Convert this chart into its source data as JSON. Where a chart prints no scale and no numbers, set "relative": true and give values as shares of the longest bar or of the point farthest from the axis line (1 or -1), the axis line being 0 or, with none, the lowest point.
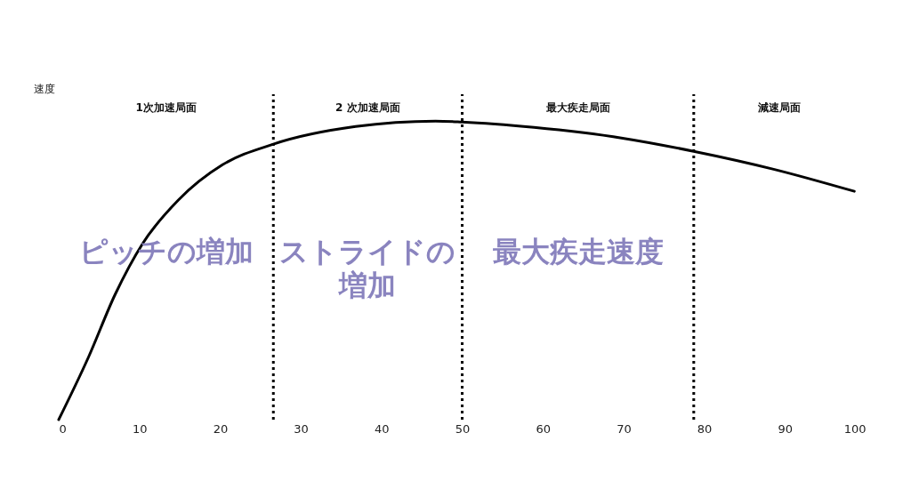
{
  "chart_data": {
    "type": "line",
    "relative": true,
    "ylabel": "速度",
    "x": [
      0,
      3.7,
      7,
      10.4,
      14.8,
      20.3,
      26.6,
      36.8,
      46.7,
      50,
      58.9,
      69.9,
      78.7,
      88.6,
      98.6
    ],
    "series": [
      {
        "color": "#000000",
        "values": [
          0,
          0.21,
          0.42,
          0.59,
          0.735,
          0.854,
          0.923,
          0.982,
          1,
          0.997,
          0.979,
          0.943,
          0.899,
          0.839,
          0.765
        ]
      }
    ],
    "xlim": [
      0,
      100
    ],
    "xticks": [
      0,
      10,
      20,
      30,
      40,
      50,
      60,
      70,
      80,
      90,
      100
    ],
    "ref_lines": [
      {
        "axis": "x",
        "value": 26.6,
        "color": "#000000",
        "line_style": "dotted"
      },
      {
        "axis": "x",
        "value": 50,
        "color": "#000000",
        "line_style": "dotted"
      },
      {
        "axis": "x",
        "value": 78.7,
        "color": "#000000",
        "line_style": "dotted"
      }
    ],
    "annotations": [
      "1次加速局面",
      "2 次加速局面",
      "最大疾走局面",
      "減速局面",
      "ピッチの増加",
      "ストライドの増加",
      "最大疾走速度"
    ],
    "grid": false,
    "marker": "none",
    "line_style": "solid"
  }
}
